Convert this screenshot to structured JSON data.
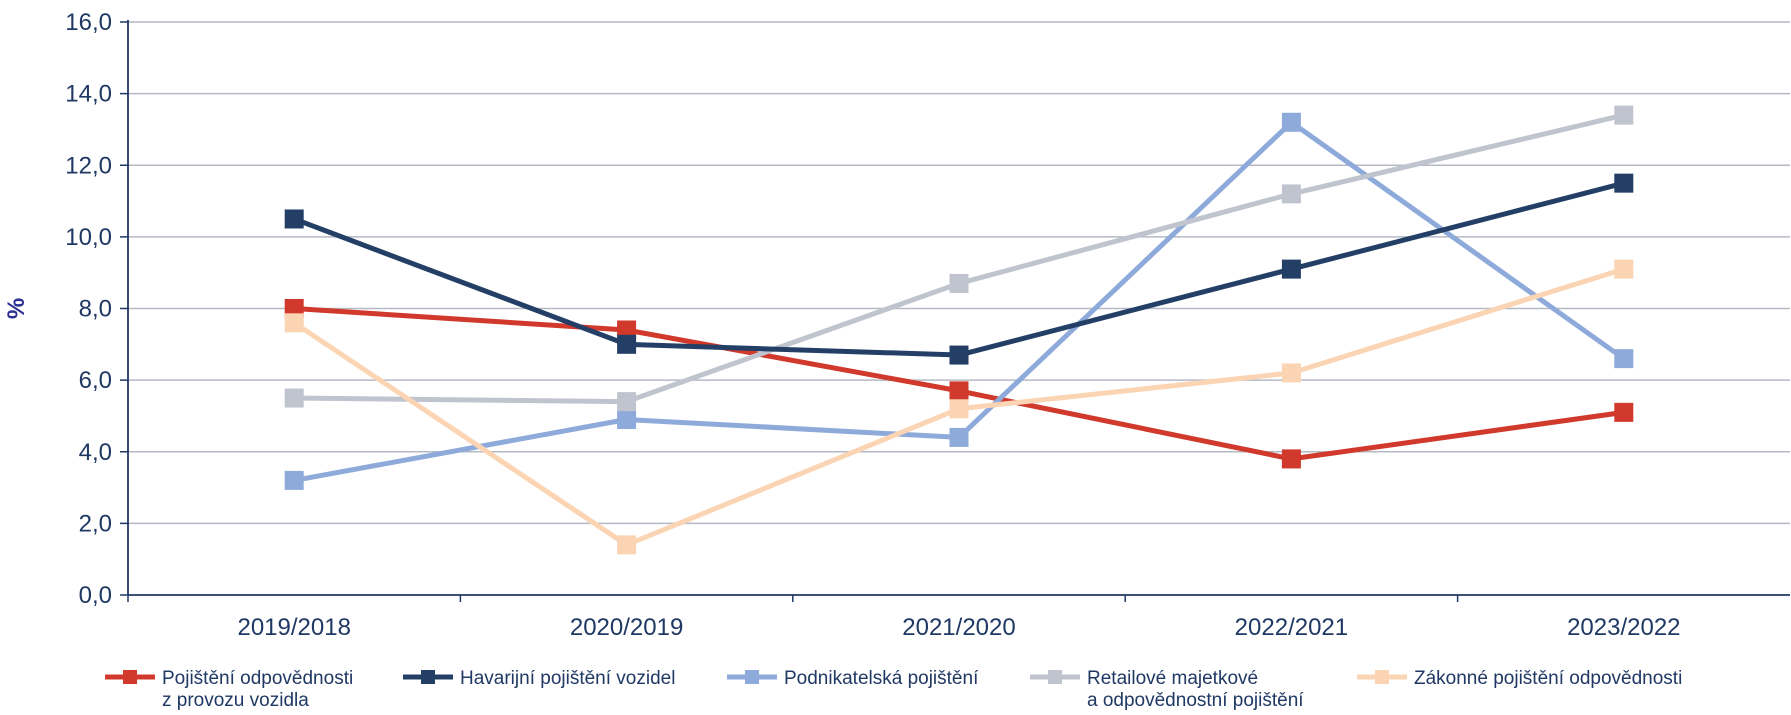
{
  "chart_data": {
    "type": "line",
    "title": "",
    "xlabel": "",
    "ylabel": "%",
    "ylim": [
      0,
      16
    ],
    "yticks": [
      "0,0",
      "2,0",
      "4,0",
      "6,0",
      "8,0",
      "10,0",
      "12,0",
      "14,0",
      "16,0"
    ],
    "grid": true,
    "legend_position": "bottom",
    "categories": [
      "2019/2018",
      "2020/2019",
      "2021/2020",
      "2022/2021",
      "2023/2022"
    ],
    "series": [
      {
        "name": "Pojištění odpovědnosti z provozu vozidla",
        "legend_lines": [
          "Pojištění odpovědnosti",
          "z provozu vozidla"
        ],
        "color": "#d0392b",
        "values": [
          8.0,
          7.4,
          5.7,
          3.8,
          5.1
        ]
      },
      {
        "name": "Havarijní pojištění vozidel",
        "legend_lines": [
          "Havarijní pojištění vozidel"
        ],
        "color": "#243f66",
        "values": [
          10.5,
          7.0,
          6.7,
          9.1,
          11.5
        ]
      },
      {
        "name": "Podnikatelská pojištění",
        "legend_lines": [
          "Podnikatelská pojištění"
        ],
        "color": "#8eaadb",
        "values": [
          3.2,
          4.9,
          4.4,
          13.2,
          6.6
        ]
      },
      {
        "name": "Retailové majetkové a odpovědnostní pojištění",
        "legend_lines": [
          "Retailové majetkové",
          "a odpovědnostní pojištění"
        ],
        "color": "#c0c4cf",
        "values": [
          5.5,
          5.4,
          8.7,
          11.2,
          13.4
        ]
      },
      {
        "name": "Zákonné pojištění odpovědnosti",
        "legend_lines": [
          "Zákonné pojištění odpovědnosti"
        ],
        "color": "#fbd4b4",
        "values": [
          7.6,
          1.4,
          5.2,
          6.2,
          9.1
        ]
      }
    ]
  }
}
